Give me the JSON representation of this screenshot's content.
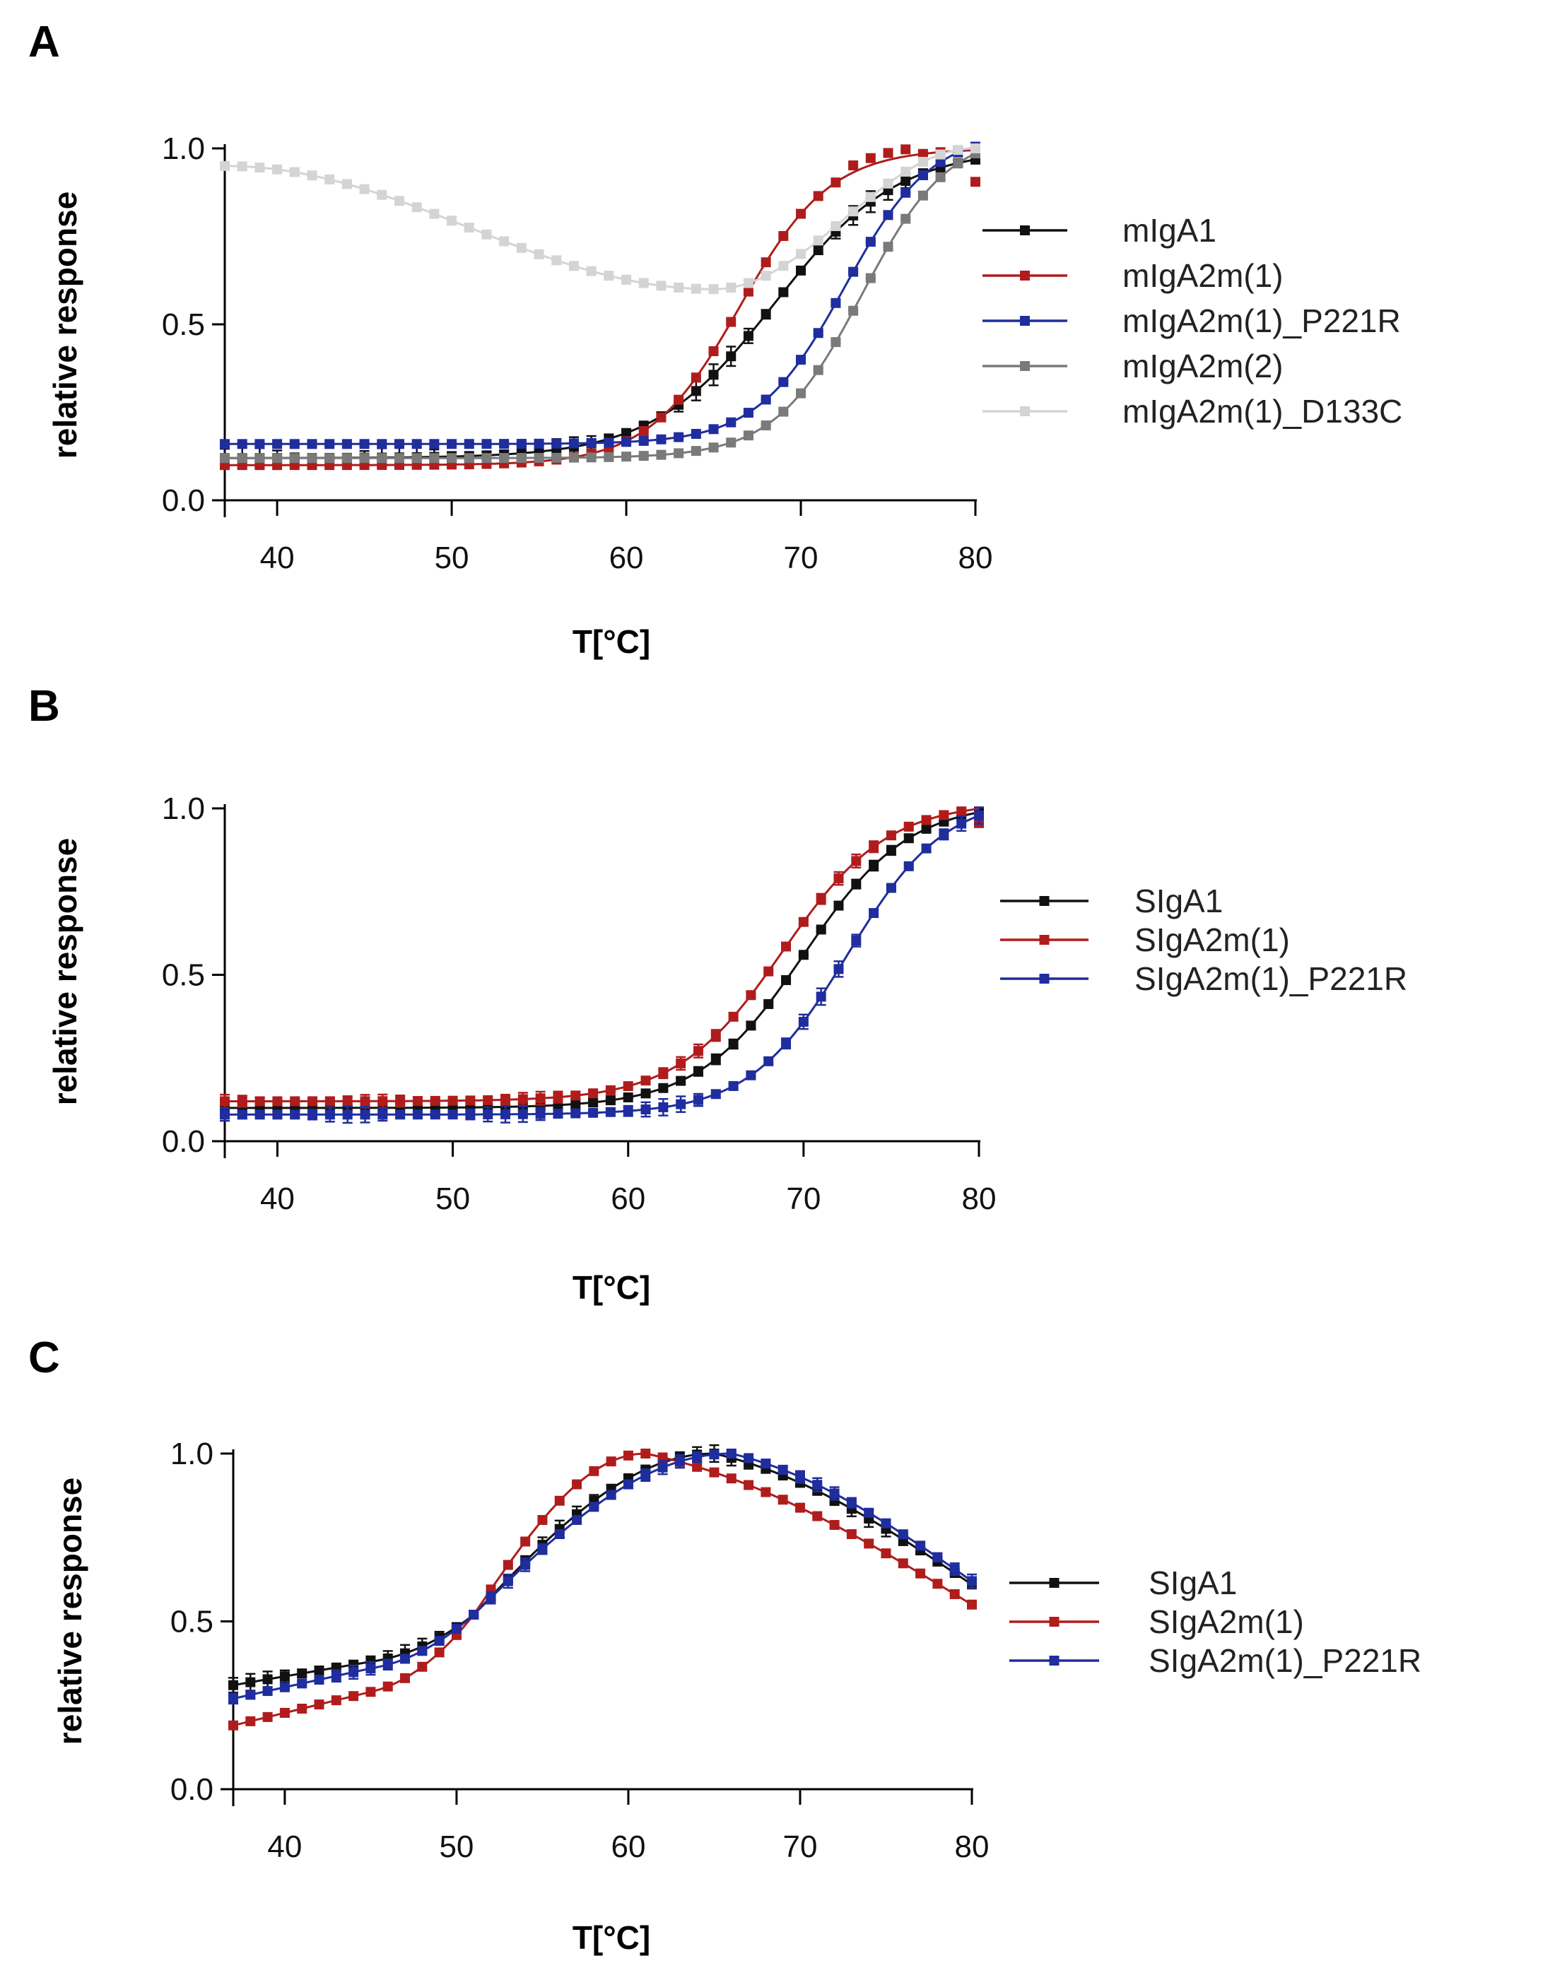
{
  "figure": {
    "panels": [
      {
        "letter": "A",
        "xlabel": "T[°C]",
        "ylabel": "relative response"
      },
      {
        "letter": "B",
        "xlabel": "T[°C]",
        "ylabel": "relative response"
      },
      {
        "letter": "C",
        "xlabel": "T[°C]",
        "ylabel": "relative response"
      }
    ]
  },
  "chart_data": [
    {
      "panel": "A",
      "type": "scatter",
      "title": "",
      "xlabel": "T[°C]",
      "ylabel": "relative response",
      "xlim": [
        37,
        80
      ],
      "ylim": [
        0.0,
        1.0
      ],
      "xticks": [
        "40",
        "50",
        "60",
        "70",
        "80"
      ],
      "yticks": [
        "0.0",
        "0.5",
        "1.0"
      ],
      "legend_position": "right",
      "series": [
        {
          "name": "mIgA1",
          "color": "#111111",
          "model": "sigmoid",
          "params": {
            "bottom": 0.12,
            "top": 1.0,
            "tm": 68.5,
            "slope": 3.5
          },
          "error": 0.03
        },
        {
          "name": "mIgA2m(1)",
          "color": "#b01c1c",
          "model": "sigmoid",
          "params": {
            "bottom": 0.1,
            "top": 1.0,
            "tm": 66.5,
            "slope": 2.6
          },
          "error": 0.0,
          "scatter_offsets": {
            "73": 0.02,
            "74": 0.02,
            "75": 0.02,
            "76": 0.02,
            "78": 0.0,
            "79": 0.0,
            "80": -0.09
          }
        },
        {
          "name": "mIgA2m(1)_P221R",
          "color": "#1f2d9e",
          "model": "sigmoid",
          "params": {
            "bottom": 0.16,
            "top": 1.05,
            "tm": 72.5,
            "slope": 2.5
          },
          "error": 0.005
        },
        {
          "name": "mIgA2m(2)",
          "color": "#7a7a7a",
          "model": "sigmoid",
          "params": {
            "bottom": 0.12,
            "top": 1.05,
            "tm": 73.5,
            "slope": 2.5
          },
          "error": 0.005
        },
        {
          "name": "mIgA2m(1)_D133C",
          "color": "#d4d4d4",
          "model": "dip",
          "params": {
            "start": 0.95,
            "min": 0.6,
            "tmin": 65,
            "end": 1.0,
            "tend": 80
          },
          "error": 0.0
        }
      ]
    },
    {
      "panel": "B",
      "type": "scatter",
      "title": "",
      "xlabel": "T[°C]",
      "ylabel": "relative response",
      "xlim": [
        37,
        80
      ],
      "ylim": [
        0.0,
        1.0
      ],
      "xticks": [
        "40",
        "50",
        "60",
        "70",
        "80"
      ],
      "yticks": [
        "0.0",
        "0.5",
        "1.0"
      ],
      "legend_position": "right",
      "series": [
        {
          "name": "SIgA1",
          "color": "#111111",
          "model": "sigmoid",
          "params": {
            "bottom": 0.1,
            "top": 1.02,
            "tm": 70.0,
            "slope": 3.0
          },
          "error": 0.015
        },
        {
          "name": "SIgA2m(1)",
          "color": "#b01c1c",
          "model": "sigmoid",
          "params": {
            "bottom": 0.12,
            "top": 1.02,
            "tm": 68.8,
            "slope": 3.0
          },
          "error": 0.02,
          "scatter_offsets": {
            "80": -0.04
          }
        },
        {
          "name": "SIgA2m(1)_P221R",
          "color": "#1f2d9e",
          "model": "sigmoid",
          "params": {
            "bottom": 0.08,
            "top": 1.04,
            "tm": 72.5,
            "slope": 2.8
          },
          "error": 0.025
        }
      ]
    },
    {
      "panel": "C",
      "type": "scatter",
      "title": "",
      "xlabel": "T[°C]",
      "ylabel": "relative response",
      "xlim": [
        37,
        80
      ],
      "ylim": [
        0.0,
        1.0
      ],
      "xticks": [
        "40",
        "50",
        "60",
        "70",
        "80"
      ],
      "yticks": [
        "0.0",
        "0.5",
        "1.0"
      ],
      "legend_position": "right",
      "series": [
        {
          "name": "SIgA1",
          "color": "#111111",
          "model": "peak",
          "params": {
            "x0": 37,
            "y0": 0.31,
            "x1": 45,
            "y1": 0.38,
            "xmid": 51,
            "ymid": 0.52,
            "xpk": 65,
            "ypk": 1.0,
            "xend": 80,
            "yend": 0.61
          },
          "error": 0.025
        },
        {
          "name": "SIgA2m(1)",
          "color": "#b01c1c",
          "model": "peak",
          "params": {
            "x0": 37,
            "y0": 0.19,
            "x1": 45,
            "y1": 0.29,
            "xmid": 51,
            "ymid": 0.52,
            "xpk": 61,
            "ypk": 1.0,
            "xend": 80,
            "yend": 0.55
          },
          "error": 0.0
        },
        {
          "name": "SIgA2m(1)_P221R",
          "color": "#1f2d9e",
          "model": "peak",
          "params": {
            "x0": 37,
            "y0": 0.27,
            "x1": 45,
            "y1": 0.36,
            "xmid": 51,
            "ymid": 0.52,
            "xpk": 66,
            "ypk": 1.0,
            "xend": 80,
            "yend": 0.62
          },
          "error": 0.02
        }
      ]
    }
  ]
}
